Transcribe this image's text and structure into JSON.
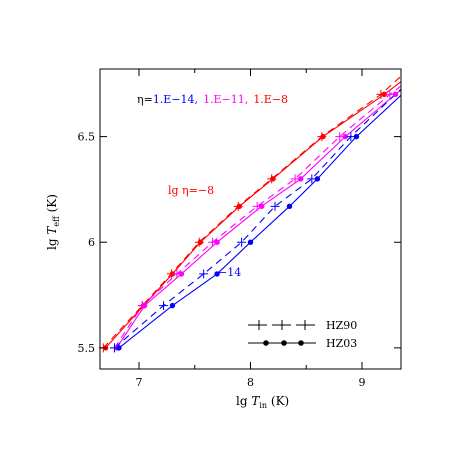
{
  "chart_data": {
    "type": "line",
    "xlabel": {
      "main": "lg ",
      "italic": "T",
      "sub": "in",
      "unit": " (K)"
    },
    "ylabel": {
      "main": "lg ",
      "italic": "T",
      "sub": "eff",
      "unit": " (K)"
    },
    "xlim": [
      6.65,
      9.35
    ],
    "ylim": [
      5.4,
      6.82
    ],
    "xticks": [
      7,
      7.5,
      8,
      8.5,
      9
    ],
    "xtick_labels": [
      {
        "value": 7,
        "label": "7"
      },
      {
        "value": 8,
        "label": "8"
      },
      {
        "value": 9,
        "label": "9"
      }
    ],
    "yticks": [
      5.5,
      6.0,
      6.5
    ],
    "ytick_labels": [
      {
        "value": 5.5,
        "label": "5.5"
      },
      {
        "value": 6.0,
        "label": "6"
      },
      {
        "value": 6.5,
        "label": "6.5"
      }
    ],
    "colors": {
      "red": "#ff0000",
      "magenta": "#ff00ff",
      "blue": "#0000ff",
      "black": "#000000"
    },
    "legend_title": {
      "prefix": "η=",
      "parts": [
        {
          "text": "1.E−14,",
          "color": "#0000ff"
        },
        {
          "text": "1.E−11,",
          "color": "#ff00ff"
        },
        {
          "text": "1.E−8",
          "color": "#ff0000"
        }
      ]
    },
    "annotations": [
      {
        "text": "lg  η=−8",
        "color": "#ff0000"
      },
      {
        "text": "−14",
        "color": "#0000ff"
      }
    ],
    "legend": [
      {
        "label": "HZ90",
        "style": "dashed-plus",
        "color": "#000000"
      },
      {
        "label": "HZ03",
        "style": "solid-dot",
        "color": "#000000"
      }
    ],
    "series": [
      {
        "name": "HZ03 η=1.E-8",
        "color": "#ff0000",
        "style": "solid",
        "marker": "dot",
        "x": [
          6.7,
          7.04,
          7.3,
          7.55,
          7.9,
          8.2,
          8.65,
          9.2,
          9.4
        ],
        "y": [
          5.5,
          5.7,
          5.85,
          6.0,
          6.17,
          6.3,
          6.5,
          6.7,
          6.78
        ]
      },
      {
        "name": "HZ90 η=1.E-8",
        "color": "#ff0000",
        "style": "dashed",
        "marker": "plus",
        "x": [
          6.68,
          7.03,
          7.29,
          7.54,
          7.89,
          8.19,
          8.64,
          9.17,
          9.4
        ],
        "y": [
          5.5,
          5.7,
          5.85,
          6.0,
          6.17,
          6.3,
          6.5,
          6.7,
          6.81
        ]
      },
      {
        "name": "HZ03 η=1.E-11",
        "color": "#ff00ff",
        "style": "solid",
        "marker": "dot",
        "x": [
          6.8,
          7.05,
          7.38,
          7.7,
          8.1,
          8.45,
          8.85,
          9.3,
          9.4
        ],
        "y": [
          5.5,
          5.7,
          5.85,
          6.0,
          6.17,
          6.3,
          6.5,
          6.7,
          6.74
        ]
      },
      {
        "name": "HZ90 η=1.E-11",
        "color": "#ff00ff",
        "style": "dashed",
        "marker": "plus",
        "x": [
          6.78,
          7.03,
          7.34,
          7.66,
          8.06,
          8.4,
          8.8,
          9.25,
          9.4
        ],
        "y": [
          5.5,
          5.7,
          5.85,
          6.0,
          6.17,
          6.3,
          6.5,
          6.7,
          6.76
        ]
      },
      {
        "name": "HZ03 η=1.E-14",
        "color": "#0000ff",
        "style": "solid",
        "marker": "dot",
        "x": [
          6.82,
          7.3,
          7.7,
          8.0,
          8.35,
          8.6,
          8.95,
          9.4
        ],
        "y": [
          5.5,
          5.7,
          5.85,
          6.0,
          6.17,
          6.3,
          6.5,
          6.72
        ]
      },
      {
        "name": "HZ90 η=1.E-14",
        "color": "#0000ff",
        "style": "dashed",
        "marker": "plus",
        "x": [
          6.78,
          7.22,
          7.58,
          7.92,
          8.22,
          8.55,
          8.9,
          9.4
        ],
        "y": [
          5.5,
          5.7,
          5.85,
          6.0,
          6.17,
          6.3,
          6.5,
          6.75
        ]
      }
    ]
  }
}
